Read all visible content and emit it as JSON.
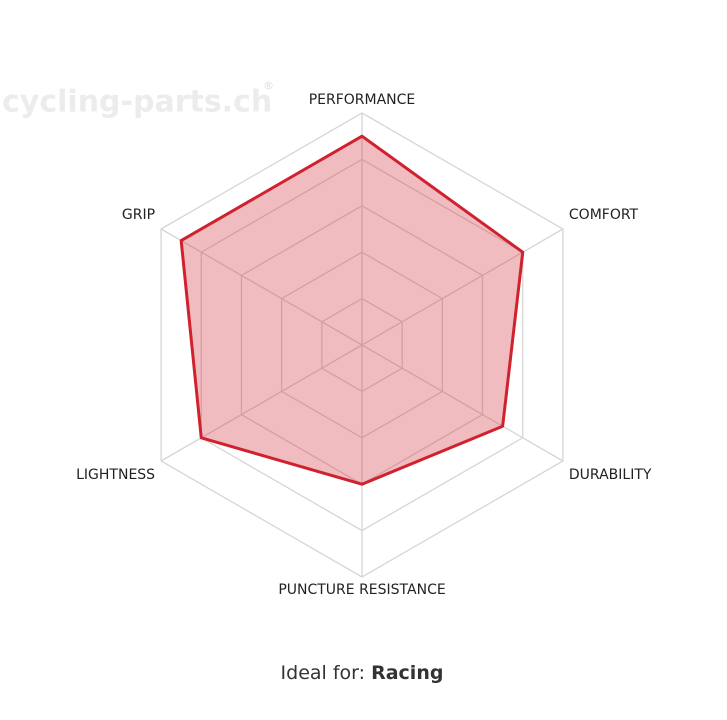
{
  "chart_data": {
    "type": "radar",
    "watermark": "cycling-parts.ch",
    "watermark_mark": "®",
    "categories": [
      "PERFORMANCE",
      "COMFORT",
      "DURABILITY",
      "PUNCTURE RESISTANCE",
      "LIGHTNESS",
      "GRIP"
    ],
    "values": [
      4.5,
      4,
      3.5,
      3,
      4,
      4.5
    ],
    "color": "#d0222e",
    "rlim": [
      0,
      5
    ],
    "rticks": [
      1,
      2,
      3,
      4,
      5
    ],
    "grid": true,
    "footer_label": "Ideal for:",
    "footer_value": "Racing"
  }
}
